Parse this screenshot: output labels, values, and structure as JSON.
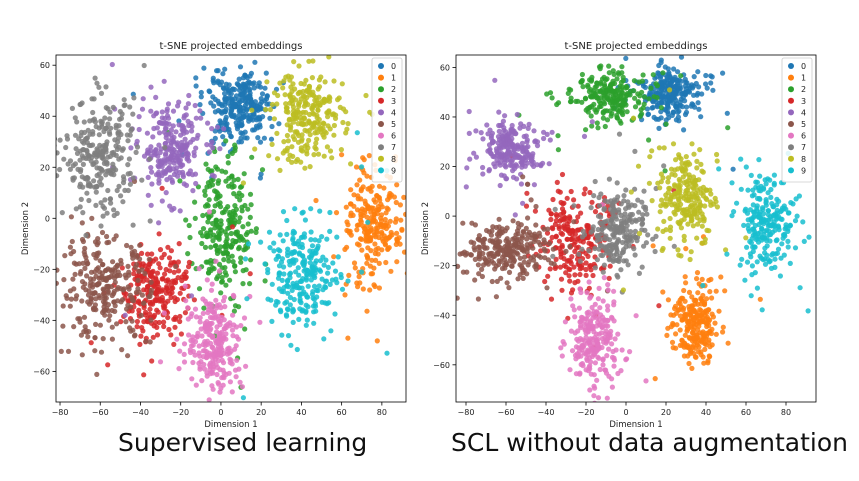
{
  "captions": {
    "left": "Supervised learning",
    "right": "SCL without data augmentation"
  },
  "chart_data": [
    {
      "type": "scatter",
      "title": "t-SNE projected embeddings",
      "xlabel": "Dimension 1",
      "ylabel": "Dimension 2",
      "xlim": [
        -82,
        92
      ],
      "ylim": [
        -72,
        64
      ],
      "xticks": [
        -80,
        -60,
        -40,
        -20,
        0,
        20,
        40,
        60,
        80
      ],
      "yticks": [
        -60,
        -40,
        -20,
        0,
        20,
        40,
        60
      ],
      "legend_position": "top-right",
      "series": [
        {
          "name": "0",
          "color": "#1f77b4",
          "clusters": [
            {
              "cx": 8,
              "cy": 44,
              "sx": 8,
              "sy": 7,
              "n": 260
            }
          ]
        },
        {
          "name": "1",
          "color": "#ff7f0e",
          "clusters": [
            {
              "cx": 75,
              "cy": -2,
              "sx": 7,
              "sy": 11,
              "n": 230
            }
          ]
        },
        {
          "name": "2",
          "color": "#2ca02c",
          "clusters": [
            {
              "cx": 2,
              "cy": -4,
              "sx": 8,
              "sy": 12,
              "n": 240
            }
          ]
        },
        {
          "name": "3",
          "color": "#d62728",
          "clusters": [
            {
              "cx": -32,
              "cy": -28,
              "sx": 8,
              "sy": 9,
              "n": 230
            }
          ]
        },
        {
          "name": "4",
          "color": "#9467bd",
          "clusters": [
            {
              "cx": -25,
              "cy": 27,
              "sx": 8,
              "sy": 9,
              "n": 240
            }
          ]
        },
        {
          "name": "5",
          "color": "#8c564b",
          "clusters": [
            {
              "cx": -58,
              "cy": -28,
              "sx": 11,
              "sy": 10,
              "n": 250
            }
          ]
        },
        {
          "name": "6",
          "color": "#e377c2",
          "clusters": [
            {
              "cx": -3,
              "cy": -48,
              "sx": 7,
              "sy": 10,
              "n": 240
            }
          ]
        },
        {
          "name": "7",
          "color": "#7f7f7f",
          "clusters": [
            {
              "cx": -60,
              "cy": 24,
              "sx": 9,
              "sy": 11,
              "n": 250
            }
          ]
        },
        {
          "name": "8",
          "color": "#bcbd22",
          "clusters": [
            {
              "cx": 43,
              "cy": 40,
              "sx": 9,
              "sy": 9,
              "n": 240
            }
          ]
        },
        {
          "name": "9",
          "color": "#17becf",
          "clusters": [
            {
              "cx": 41,
              "cy": -22,
              "sx": 9,
              "sy": 10,
              "n": 240
            }
          ]
        }
      ]
    },
    {
      "type": "scatter",
      "title": "t-SNE projected embeddings",
      "xlabel": "Dimension 1",
      "ylabel": "Dimension 2",
      "xlim": [
        -85,
        95
      ],
      "ylim": [
        -75,
        65
      ],
      "xticks": [
        -80,
        -60,
        -40,
        -20,
        0,
        20,
        40,
        60,
        80
      ],
      "yticks": [
        -60,
        -40,
        -20,
        0,
        20,
        40,
        60
      ],
      "legend_position": "top-right",
      "series": [
        {
          "name": "0",
          "color": "#1f77b4",
          "clusters": [
            {
              "cx": 22,
              "cy": 50,
              "sx": 8,
              "sy": 5,
              "n": 240
            }
          ]
        },
        {
          "name": "1",
          "color": "#ff7f0e",
          "clusters": [
            {
              "cx": 35,
              "cy": -43,
              "sx": 6,
              "sy": 8,
              "n": 220
            }
          ]
        },
        {
          "name": "2",
          "color": "#2ca02c",
          "clusters": [
            {
              "cx": -8,
              "cy": 48,
              "sx": 10,
              "sy": 5,
              "n": 220
            }
          ]
        },
        {
          "name": "3",
          "color": "#d62728",
          "clusters": [
            {
              "cx": -25,
              "cy": -10,
              "sx": 9,
              "sy": 10,
              "n": 220
            }
          ]
        },
        {
          "name": "4",
          "color": "#9467bd",
          "clusters": [
            {
              "cx": -58,
              "cy": 27,
              "sx": 8,
              "sy": 6,
              "n": 220
            }
          ]
        },
        {
          "name": "5",
          "color": "#8c564b",
          "clusters": [
            {
              "cx": -58,
              "cy": -13,
              "sx": 11,
              "sy": 6,
              "n": 240
            }
          ]
        },
        {
          "name": "6",
          "color": "#e377c2",
          "clusters": [
            {
              "cx": -16,
              "cy": -51,
              "sx": 6,
              "sy": 9,
              "n": 220
            }
          ]
        },
        {
          "name": "7",
          "color": "#7f7f7f",
          "clusters": [
            {
              "cx": -5,
              "cy": -6,
              "sx": 7,
              "sy": 8,
              "n": 220
            }
          ]
        },
        {
          "name": "8",
          "color": "#bcbd22",
          "clusters": [
            {
              "cx": 30,
              "cy": 8,
              "sx": 7,
              "sy": 10,
              "n": 220
            }
          ]
        },
        {
          "name": "9",
          "color": "#17becf",
          "clusters": [
            {
              "cx": 70,
              "cy": -2,
              "sx": 7,
              "sy": 10,
              "n": 220
            }
          ]
        }
      ]
    }
  ]
}
